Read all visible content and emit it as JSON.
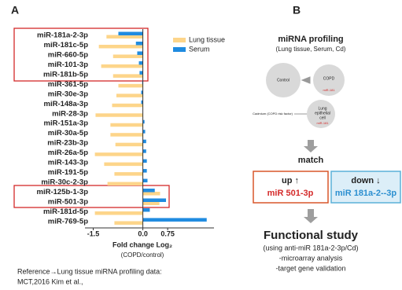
{
  "chart_data": {
    "type": "barh",
    "categories": [
      "miR-181a-2-3p",
      "miR-181c-5p",
      "miR-660-5p",
      "miR-101-3p",
      "miR-181b-5p",
      "miR-361-5p",
      "miR-30e-3p",
      "miR-148a-3p",
      "miR-28-3p",
      "miR-151a-3p",
      "miR-30a-5p",
      "miR-23b-3p",
      "miR-26a-5p",
      "miR-143-3p",
      "miR-191-5p",
      "miR-30c-2-3p",
      "miR-125b-1-3p",
      "miR-501-3p",
      "miR-181d-5p",
      "miR-769-5p"
    ],
    "series": [
      {
        "name": "Lung tissue",
        "color": "#fdd58a",
        "values": [
          -1.1,
          -1.33,
          -0.9,
          -1.26,
          -0.9,
          -0.74,
          -0.8,
          -0.93,
          -1.43,
          -0.98,
          -0.98,
          -0.83,
          -1.45,
          -1.17,
          -0.86,
          -1.07,
          0.52,
          0.5,
          -1.45,
          -0.86
        ]
      },
      {
        "name": "Serum",
        "color": "#1f8be0",
        "values": [
          -0.74,
          -0.21,
          -0.17,
          -0.12,
          -0.1,
          -0.02,
          -0.05,
          -0.05,
          0,
          0.05,
          0.07,
          0.1,
          0.1,
          0.12,
          0.12,
          0.14,
          0.36,
          0.7,
          0.21,
          1.93
        ]
      }
    ],
    "xlim": [
      -1.75,
      2.15
    ],
    "xticks": [
      -1.5,
      {
        "value": 0,
        "label": "0.0"
      },
      0.75
    ],
    "xlabel": "Fold change Log₂",
    "xlabel2": "(COPD/control)",
    "legend": "upper right"
  },
  "panel_labels": [
    "A",
    "B"
  ],
  "reference": [
    "Reference→Lung tissue miRNA profiling data:",
    "MCT,2016 Kim et al.,"
  ],
  "profiling": {
    "title": "miRNA profiling",
    "subtitle": "(Lung tissue, Serum, Cd)",
    "control": "Control",
    "copd": "COPD",
    "copd_note": "miR-181",
    "cadmium": "Cadmium (COPD risk factor)",
    "cell": [
      "Lung",
      "epithelial",
      "cell"
    ],
    "cell_note": "miR-181"
  },
  "match": "match",
  "up": {
    "label": "up ↑",
    "mirna": "miR 501-3p"
  },
  "down": {
    "label": "down ↓",
    "mirna": "miR 181a-2--3p"
  },
  "functional": {
    "title": "Functional study",
    "lines": [
      "(using anti-miR 181a-2-3p/Cd)",
      "-microarray analysis",
      "-target gene validation"
    ]
  }
}
